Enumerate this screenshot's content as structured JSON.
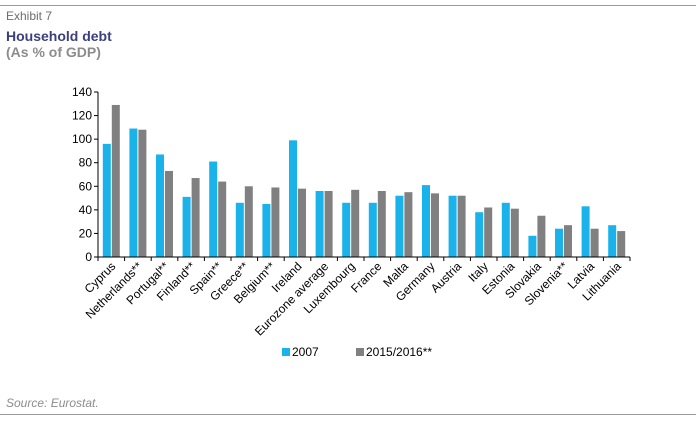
{
  "header": {
    "exhibit": "Exhibit 7",
    "title": "Household debt",
    "subtitle": "(As % of GDP)"
  },
  "footer": {
    "source": "Source: Eurostat."
  },
  "colors": {
    "series_2007": "#1ab2ea",
    "series_2015": "#808080"
  },
  "chart_data": {
    "type": "bar",
    "title": "",
    "xlabel": "",
    "ylabel": "",
    "ylim": [
      0,
      140
    ],
    "yticks": [
      0,
      20,
      40,
      60,
      80,
      100,
      120,
      140
    ],
    "grid": false,
    "legend": "bottom",
    "categories": [
      "Cyprus",
      "Netherlands**",
      "Portugal**",
      "Finland**",
      "Spain**",
      "Greece**",
      "Belgium**",
      "Ireland",
      "Eurozone average",
      "Luxembourg",
      "France",
      "Malta",
      "Germany",
      "Austria",
      "Italy",
      "Estonia",
      "Slovakia",
      "Slovenia**",
      "Latvia",
      "Lithuania"
    ],
    "series": [
      {
        "name": "2007",
        "values": [
          96,
          109,
          87,
          51,
          81,
          46,
          45,
          99,
          56,
          46,
          46,
          52,
          61,
          52,
          38,
          46,
          18,
          24,
          43,
          27
        ]
      },
      {
        "name": "2015/2016**",
        "values": [
          129,
          108,
          73,
          67,
          64,
          60,
          59,
          58,
          56,
          57,
          56,
          55,
          54,
          52,
          42,
          41,
          35,
          27,
          24,
          22
        ]
      }
    ]
  }
}
